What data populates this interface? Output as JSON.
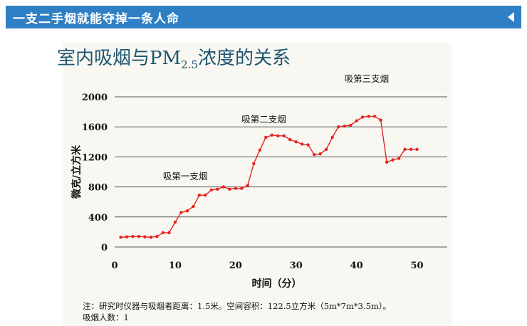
{
  "header": {
    "title": "一支二手烟就能夺掉一条人命",
    "arrow_icon": "collapse-left-icon",
    "bg_color": "#2f7fc4"
  },
  "chart_title": {
    "main_a": "室内吸烟与PM",
    "subscript": "2.5",
    "main_b": "浓度的关系"
  },
  "chart_data": {
    "type": "line",
    "title": "室内吸烟与PM2.5浓度的关系",
    "xlabel": "时间（分）",
    "ylabel": "微克/立方米",
    "xlim": [
      0,
      55
    ],
    "ylim": [
      0,
      2000
    ],
    "x_ticks": [
      "0",
      "10",
      "20",
      "30",
      "40",
      "50"
    ],
    "y_ticks": [
      "0",
      "400",
      "800",
      "1200",
      "1600",
      "2000"
    ],
    "grid": "horizontal",
    "color": "#e8231f",
    "series": [
      {
        "x": [
          1,
          2,
          3,
          4,
          5,
          6,
          7,
          8,
          9,
          10,
          11,
          12,
          13,
          14,
          15,
          16,
          17,
          18,
          19,
          20,
          21,
          22,
          23,
          24,
          25,
          26,
          27,
          28,
          29,
          30,
          31,
          32,
          33,
          34,
          35,
          36,
          37,
          38,
          39,
          40,
          41,
          42,
          43,
          44,
          45,
          46,
          47,
          48,
          49,
          50
        ],
        "values": [
          130,
          135,
          140,
          140,
          135,
          130,
          140,
          190,
          190,
          330,
          460,
          480,
          540,
          690,
          690,
          760,
          770,
          800,
          770,
          780,
          780,
          820,
          1110,
          1290,
          1460,
          1490,
          1480,
          1480,
          1430,
          1400,
          1370,
          1360,
          1230,
          1240,
          1300,
          1460,
          1600,
          1610,
          1620,
          1680,
          1730,
          1740,
          1740,
          1690,
          1130,
          1160,
          1180,
          1300,
          1300,
          1300
        ]
      }
    ],
    "annotations": [
      {
        "text": "吸第一支烟",
        "x": 8,
        "y": 900
      },
      {
        "text": "吸第二支烟",
        "x": 21,
        "y": 1660
      },
      {
        "text": "吸第三支烟",
        "x": 38,
        "y": 2200
      }
    ]
  },
  "note": {
    "line1": "注：研究时仪器与吸烟者距离：1.5米。空间容积：122.5立方米（5m*7m*3.5m）。",
    "line2": "吸烟人数：1"
  }
}
